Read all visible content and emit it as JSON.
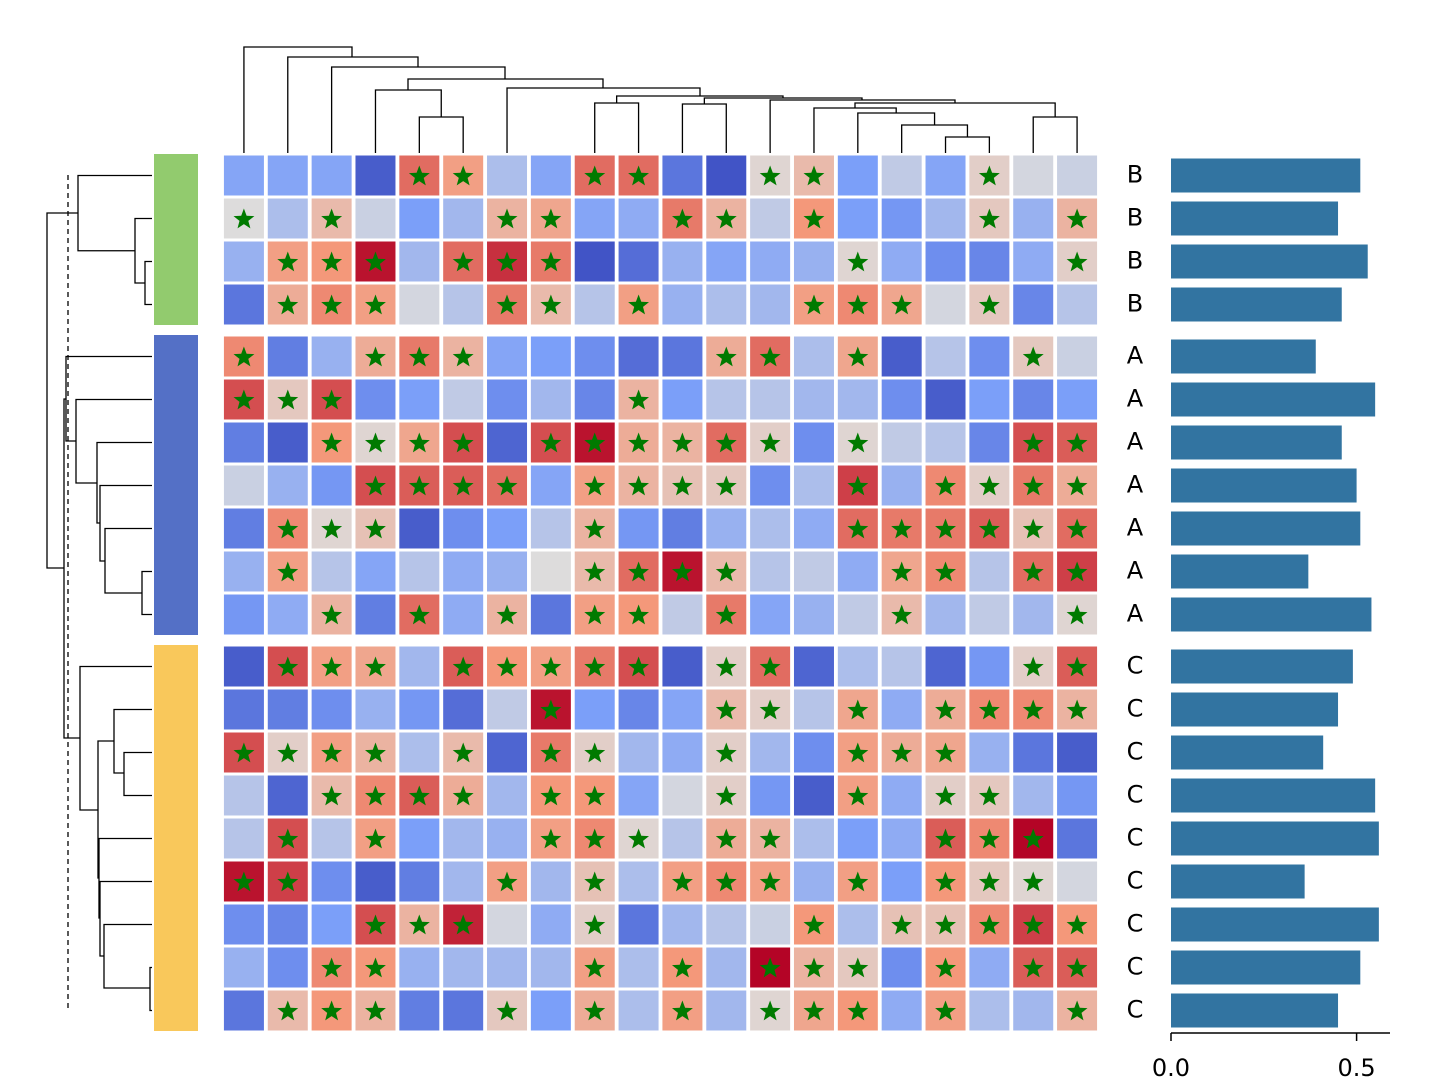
{
  "chart_data": [
    {
      "type": "heatmap",
      "rows": [
        "B",
        "B",
        "B",
        "B",
        "A",
        "A",
        "A",
        "A",
        "A",
        "A",
        "A",
        "C",
        "C",
        "C",
        "C",
        "C",
        "C",
        "C",
        "C",
        "C"
      ],
      "row_colors": [
        "#92cb6e",
        "#92cb6e",
        "#92cb6e",
        "#92cb6e",
        "#5470c6",
        "#5470c6",
        "#5470c6",
        "#5470c6",
        "#5470c6",
        "#5470c6",
        "#5470c6",
        "#f9c85b",
        "#f9c85b",
        "#f9c85b",
        "#f9c85b",
        "#f9c85b",
        "#f9c85b",
        "#f9c85b",
        "#f9c85b",
        "#f9c85b"
      ],
      "clim": [
        -1,
        1
      ],
      "star_color": "#007a00",
      "values": [
        [
          -0.45,
          -0.45,
          -0.45,
          -0.9,
          0.65,
          0.45,
          -0.25,
          -0.45,
          0.65,
          0.65,
          -0.75,
          -0.95,
          0.05,
          0.25,
          -0.5,
          -0.15,
          -0.45,
          0.1,
          -0.05,
          -0.1
        ],
        [
          0,
          -0.25,
          0.25,
          -0.1,
          -0.5,
          -0.3,
          0.3,
          0.4,
          -0.45,
          -0.4,
          0.6,
          0.3,
          -0.15,
          0.5,
          -0.5,
          -0.55,
          -0.3,
          0.15,
          -0.35,
          0.3
        ],
        [
          -0.35,
          0.45,
          0.5,
          0.95,
          -0.3,
          0.65,
          0.85,
          0.6,
          -0.95,
          -0.8,
          -0.35,
          -0.45,
          -0.4,
          -0.35,
          0.05,
          -0.4,
          -0.6,
          -0.65,
          -0.4,
          0.1
        ],
        [
          -0.75,
          0.35,
          0.55,
          0.45,
          -0.05,
          -0.2,
          0.6,
          0.25,
          -0.2,
          0.45,
          -0.35,
          -0.25,
          -0.3,
          0.45,
          0.55,
          0.4,
          -0.05,
          0.15,
          -0.65,
          -0.2
        ],
        [
          0.55,
          -0.7,
          -0.35,
          0.35,
          0.6,
          0.3,
          -0.45,
          -0.5,
          -0.6,
          -0.8,
          -0.75,
          0.35,
          0.65,
          -0.25,
          0.4,
          -0.9,
          -0.2,
          -0.6,
          0.15,
          -0.1
        ],
        [
          0.75,
          0.15,
          0.75,
          -0.6,
          -0.5,
          -0.15,
          -0.6,
          -0.3,
          -0.65,
          0.3,
          -0.5,
          -0.2,
          -0.2,
          -0.3,
          -0.3,
          -0.6,
          -0.9,
          -0.5,
          -0.65,
          -0.5
        ],
        [
          -0.7,
          -0.9,
          0.5,
          0.05,
          0.4,
          0.75,
          -0.85,
          0.75,
          0.95,
          0.35,
          0.3,
          0.65,
          0.1,
          -0.6,
          0.05,
          -0.15,
          -0.2,
          -0.65,
          0.75,
          0.7
        ],
        [
          -0.1,
          -0.35,
          -0.55,
          0.75,
          0.7,
          0.7,
          0.65,
          -0.45,
          0.45,
          0.3,
          0.2,
          0.15,
          -0.6,
          -0.25,
          0.8,
          -0.35,
          0.55,
          0.1,
          0.6,
          0.35
        ],
        [
          -0.7,
          0.55,
          0.05,
          0.2,
          -0.9,
          -0.6,
          -0.5,
          -0.2,
          0.3,
          -0.55,
          -0.7,
          -0.35,
          -0.25,
          -0.4,
          0.65,
          0.6,
          0.6,
          0.7,
          0.2,
          0.65
        ],
        [
          -0.35,
          0.45,
          -0.2,
          -0.45,
          -0.2,
          -0.4,
          -0.35,
          0,
          0.25,
          0.65,
          0.95,
          0.25,
          -0.2,
          -0.15,
          -0.4,
          0.4,
          0.55,
          -0.2,
          0.65,
          0.8
        ],
        [
          -0.55,
          -0.4,
          0.3,
          -0.7,
          0.65,
          -0.4,
          0.3,
          -0.75,
          0.45,
          0.5,
          -0.15,
          0.6,
          -0.45,
          -0.35,
          -0.15,
          0.25,
          -0.3,
          -0.15,
          -0.3,
          0.05
        ],
        [
          -0.9,
          0.75,
          0.45,
          0.4,
          -0.3,
          0.7,
          0.5,
          0.45,
          0.6,
          0.75,
          -0.9,
          0.1,
          0.65,
          -0.85,
          -0.25,
          -0.2,
          -0.85,
          -0.55,
          0.1,
          0.7
        ],
        [
          -0.75,
          -0.7,
          -0.6,
          -0.35,
          -0.55,
          -0.8,
          -0.15,
          0.95,
          -0.5,
          -0.65,
          -0.45,
          0.25,
          0.1,
          -0.2,
          0.4,
          -0.4,
          0.35,
          0.55,
          0.55,
          0.3
        ],
        [
          0.75,
          0.1,
          0.45,
          0.3,
          -0.25,
          0.25,
          -0.85,
          0.6,
          0.1,
          -0.3,
          -0.4,
          0.1,
          -0.3,
          -0.6,
          0.45,
          0.35,
          0.4,
          -0.35,
          -0.75,
          -0.9
        ],
        [
          -0.2,
          -0.85,
          0.25,
          0.55,
          0.7,
          0.35,
          -0.3,
          0.5,
          0.5,
          -0.45,
          -0.05,
          0.1,
          -0.55,
          -0.9,
          0.45,
          -0.4,
          0.1,
          0.15,
          -0.3,
          -0.55
        ],
        [
          -0.2,
          0.75,
          -0.2,
          0.45,
          -0.5,
          -0.3,
          -0.35,
          0.45,
          0.55,
          0.05,
          -0.2,
          0.35,
          0.3,
          -0.25,
          -0.5,
          -0.4,
          0.7,
          0.55,
          1,
          -0.75
        ],
        [
          0.95,
          0.8,
          -0.6,
          -0.9,
          -0.7,
          -0.3,
          0.45,
          -0.3,
          0.2,
          -0.25,
          0.45,
          0.55,
          0.45,
          -0.35,
          0.45,
          -0.5,
          0.5,
          0.15,
          0.05,
          -0.05
        ],
        [
          -0.6,
          -0.65,
          -0.5,
          0.75,
          0.3,
          0.9,
          -0.05,
          -0.4,
          0.1,
          -0.75,
          -0.3,
          -0.2,
          -0.1,
          0.5,
          -0.25,
          0.2,
          0.2,
          0.55,
          0.8,
          0.5
        ],
        [
          -0.35,
          -0.6,
          0.55,
          0.5,
          -0.35,
          -0.3,
          -0.3,
          -0.3,
          0.45,
          -0.25,
          0.5,
          -0.3,
          1,
          0.3,
          0.15,
          -0.6,
          0.5,
          -0.4,
          0.7,
          0.7
        ],
        [
          -0.75,
          0.25,
          0.5,
          0.3,
          -0.7,
          -0.75,
          0.15,
          -0.5,
          0.35,
          -0.25,
          0.45,
          -0.3,
          0.05,
          0.4,
          0.5,
          -0.4,
          0.45,
          -0.25,
          -0.3,
          0.3
        ]
      ],
      "stars": [
        [
          0,
          0,
          0,
          0,
          1,
          1,
          0,
          0,
          1,
          1,
          0,
          0,
          1,
          1,
          0,
          0,
          0,
          1,
          0,
          0
        ],
        [
          1,
          0,
          1,
          0,
          0,
          0,
          1,
          1,
          0,
          0,
          1,
          1,
          0,
          1,
          0,
          0,
          0,
          1,
          0,
          1
        ],
        [
          0,
          1,
          1,
          1,
          0,
          1,
          1,
          1,
          0,
          0,
          0,
          0,
          0,
          0,
          1,
          0,
          0,
          0,
          0,
          1
        ],
        [
          0,
          1,
          1,
          1,
          0,
          0,
          1,
          1,
          0,
          1,
          0,
          0,
          0,
          1,
          1,
          1,
          0,
          1,
          0,
          0
        ],
        [
          1,
          0,
          0,
          1,
          1,
          1,
          0,
          0,
          0,
          0,
          0,
          1,
          1,
          0,
          1,
          0,
          0,
          0,
          1,
          0
        ],
        [
          1,
          1,
          1,
          0,
          0,
          0,
          0,
          0,
          0,
          1,
          0,
          0,
          0,
          0,
          0,
          0,
          0,
          0,
          0,
          0
        ],
        [
          0,
          0,
          1,
          1,
          1,
          1,
          0,
          1,
          1,
          1,
          1,
          1,
          1,
          0,
          1,
          0,
          0,
          0,
          1,
          1
        ],
        [
          0,
          0,
          0,
          1,
          1,
          1,
          1,
          0,
          1,
          1,
          1,
          1,
          0,
          0,
          1,
          0,
          1,
          1,
          1,
          1
        ],
        [
          0,
          1,
          1,
          1,
          0,
          0,
          0,
          0,
          1,
          0,
          0,
          0,
          0,
          0,
          1,
          1,
          1,
          1,
          1,
          1
        ],
        [
          0,
          1,
          0,
          0,
          0,
          0,
          0,
          0,
          1,
          1,
          1,
          1,
          0,
          0,
          0,
          1,
          1,
          0,
          1,
          1
        ],
        [
          0,
          0,
          1,
          0,
          1,
          0,
          1,
          0,
          1,
          1,
          0,
          1,
          0,
          0,
          0,
          1,
          0,
          0,
          0,
          1
        ],
        [
          0,
          1,
          1,
          1,
          0,
          1,
          1,
          1,
          1,
          1,
          0,
          1,
          1,
          0,
          0,
          0,
          0,
          0,
          1,
          1
        ],
        [
          0,
          0,
          0,
          0,
          0,
          0,
          0,
          1,
          0,
          0,
          0,
          1,
          1,
          0,
          1,
          0,
          1,
          1,
          1,
          1
        ],
        [
          1,
          1,
          1,
          1,
          0,
          1,
          0,
          1,
          1,
          0,
          0,
          1,
          0,
          0,
          1,
          1,
          1,
          0,
          0,
          0
        ],
        [
          0,
          0,
          1,
          1,
          1,
          1,
          0,
          1,
          1,
          0,
          0,
          1,
          0,
          0,
          1,
          0,
          1,
          1,
          0,
          0
        ],
        [
          0,
          1,
          0,
          1,
          0,
          0,
          0,
          1,
          1,
          1,
          0,
          1,
          1,
          0,
          0,
          0,
          1,
          1,
          1,
          0
        ],
        [
          1,
          1,
          0,
          0,
          0,
          0,
          1,
          0,
          1,
          0,
          1,
          1,
          1,
          0,
          1,
          0,
          1,
          1,
          1,
          0
        ],
        [
          0,
          0,
          0,
          1,
          1,
          1,
          0,
          0,
          1,
          0,
          0,
          0,
          0,
          1,
          0,
          1,
          1,
          1,
          1,
          1
        ],
        [
          0,
          0,
          1,
          1,
          0,
          0,
          0,
          0,
          1,
          0,
          1,
          0,
          1,
          1,
          1,
          0,
          1,
          0,
          1,
          1
        ],
        [
          0,
          1,
          1,
          1,
          0,
          0,
          1,
          0,
          1,
          0,
          1,
          0,
          1,
          1,
          1,
          0,
          1,
          0,
          0,
          1
        ]
      ]
    },
    {
      "type": "barh",
      "color": "#3274a1",
      "values": [
        0.51,
        0.45,
        0.53,
        0.46,
        0.39,
        0.55,
        0.46,
        0.5,
        0.51,
        0.37,
        0.54,
        0.49,
        0.45,
        0.41,
        0.55,
        0.56,
        0.36,
        0.56,
        0.51,
        0.45
      ],
      "xlim": [
        0,
        0.59
      ],
      "xticks": [
        {
          "value": 0,
          "label": "0.0"
        },
        {
          "value": 0.5,
          "label": "0.5"
        }
      ]
    }
  ]
}
